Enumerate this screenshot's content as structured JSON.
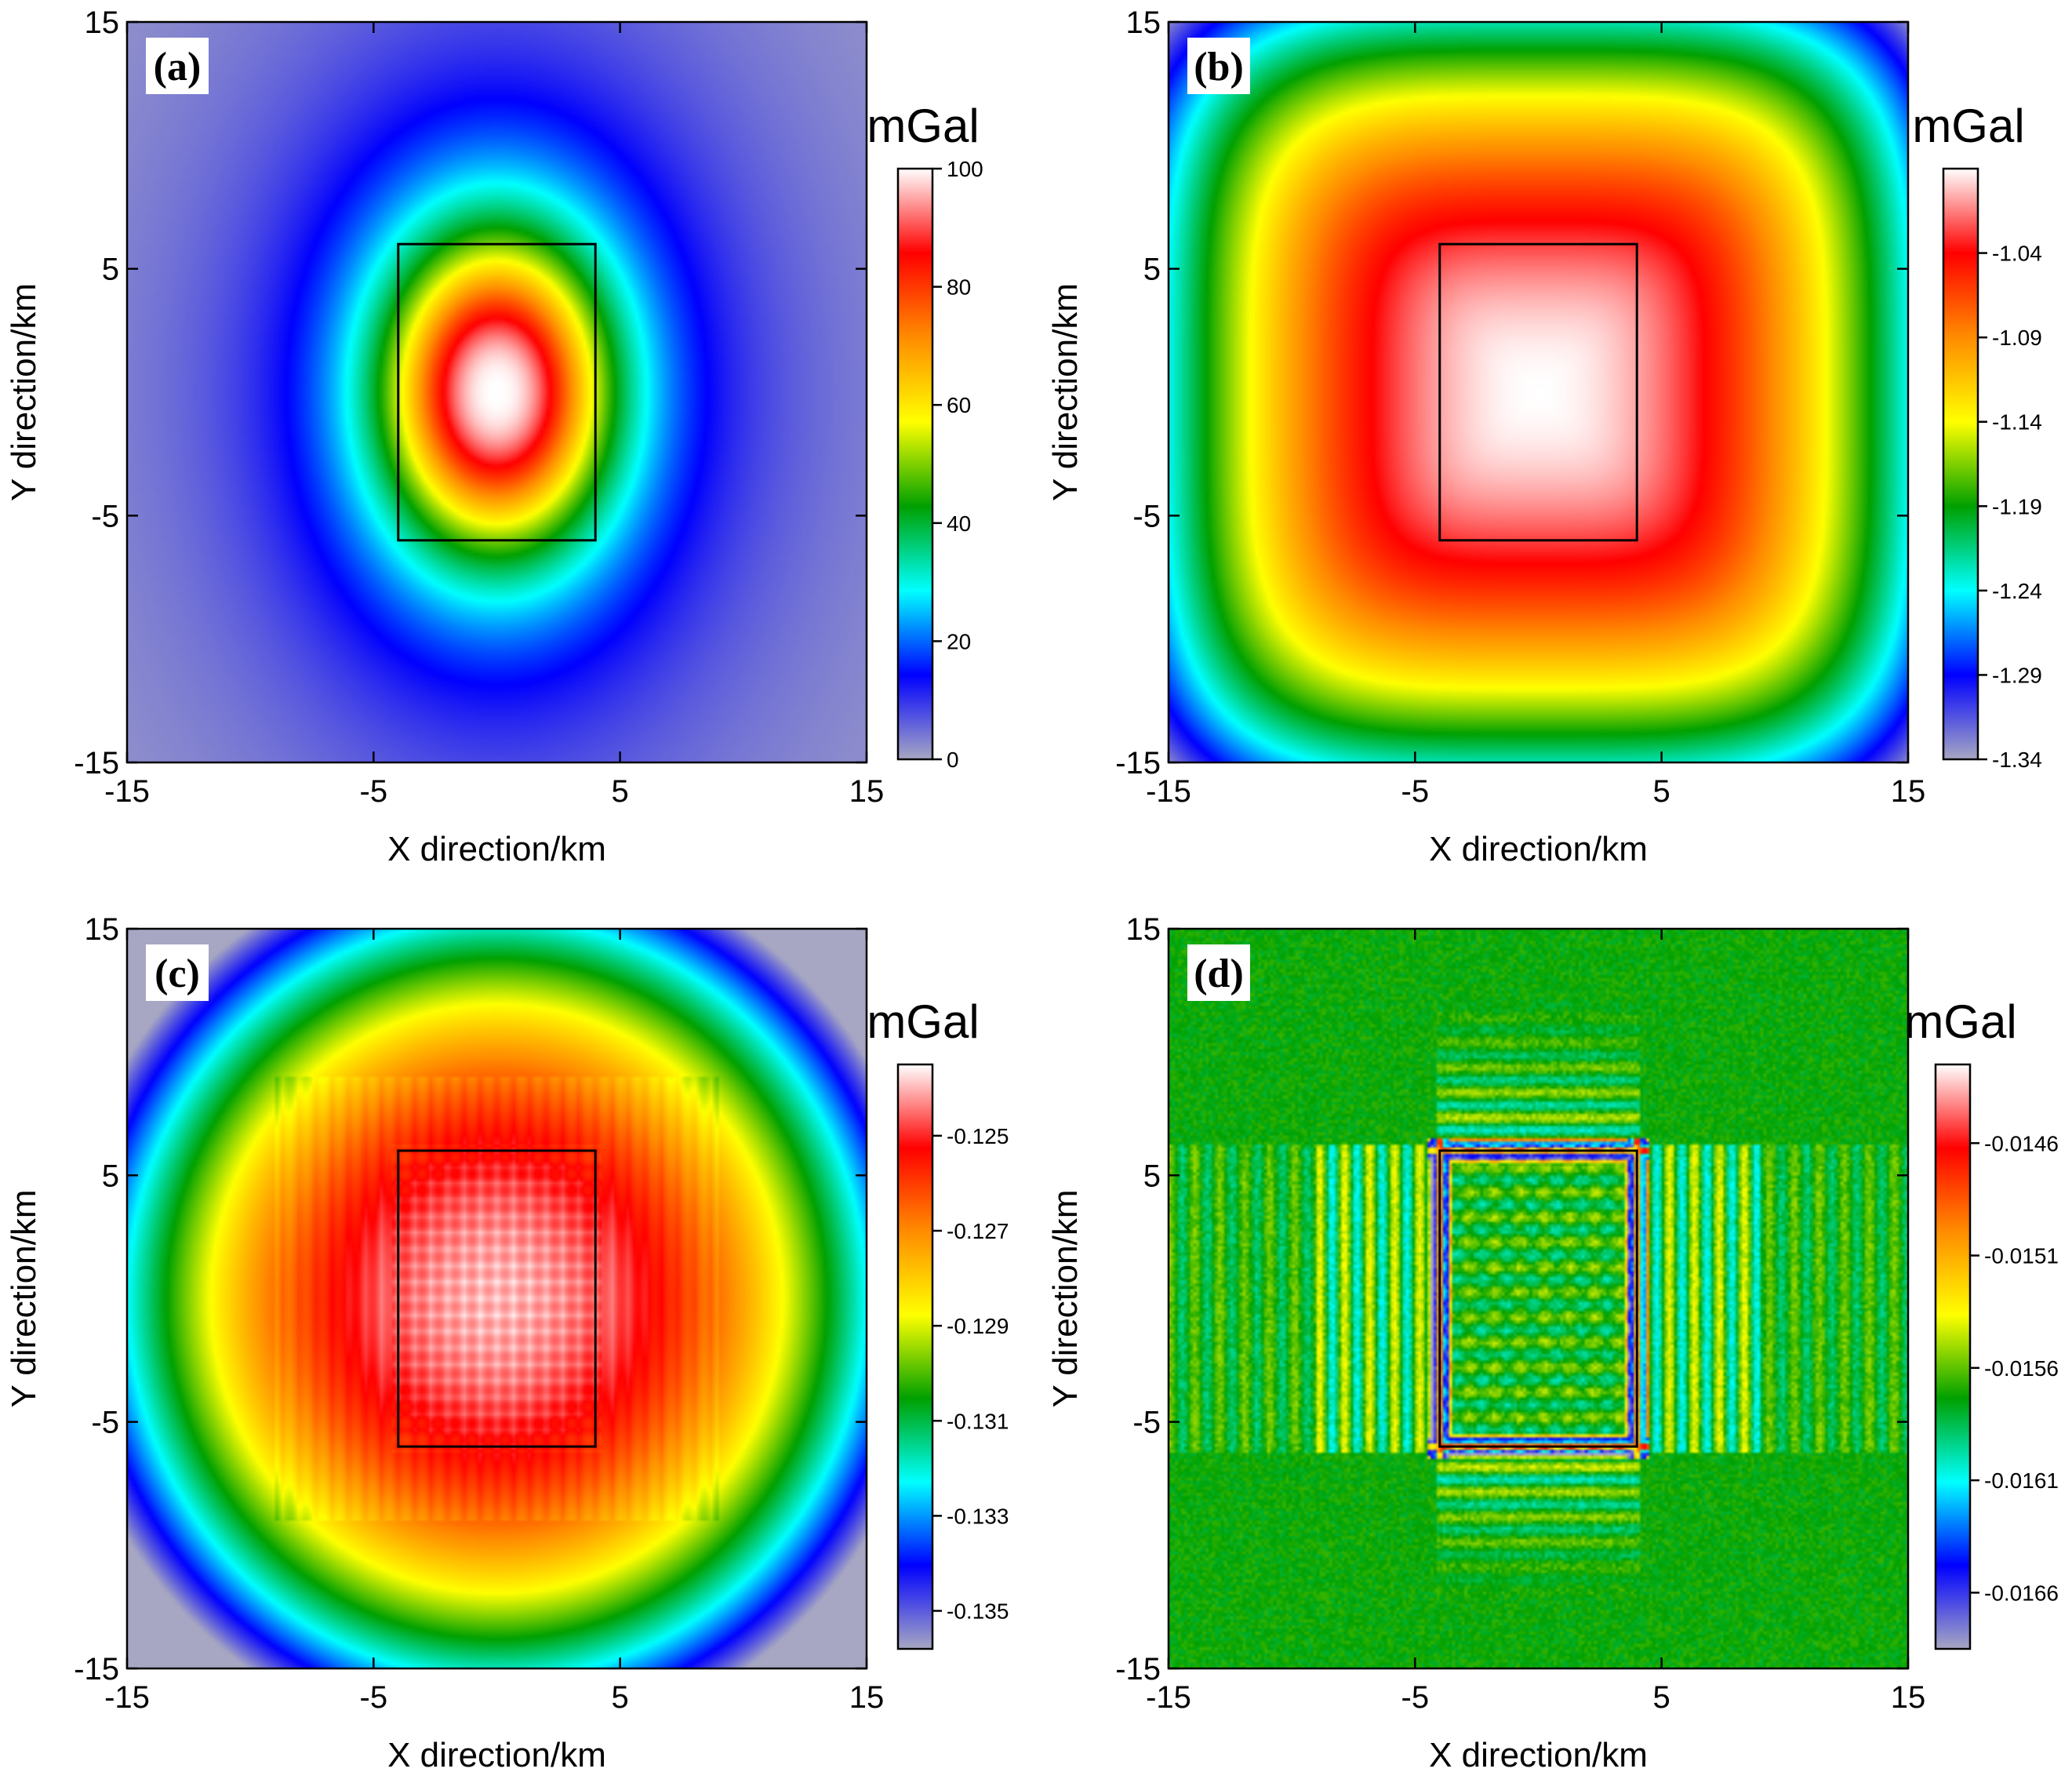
{
  "figure": {
    "axis": {
      "xlabel": "X direction/km",
      "ylabel": "Y direction/km"
    },
    "colorbar_unit": "mGal",
    "colormap": [
      "#a7a7c3",
      "#0000ff",
      "#00ffff",
      "#00a000",
      "#ffff00",
      "#ff8c00",
      "#ff0000",
      "#ffffff"
    ]
  },
  "chart_data": [
    {
      "type": "heatmap",
      "panel": "(a)",
      "xlabel": "X direction/km",
      "ylabel": "Y direction/km",
      "xlim": [
        -15,
        15
      ],
      "ylim": [
        -15,
        15
      ],
      "xticks": [
        "-15",
        "-5",
        "5",
        "15"
      ],
      "yticks": [
        "15",
        "5",
        "-5",
        "-15"
      ],
      "field": "central anomaly",
      "outline": {
        "x": [
          -4,
          4
        ],
        "y": [
          -6,
          6
        ]
      },
      "colorbar": {
        "unit": "mGal",
        "range": [
          0,
          100
        ],
        "ticks": [
          "100",
          "80",
          "60",
          "40",
          "20",
          "0"
        ]
      }
    },
    {
      "type": "heatmap",
      "panel": "(b)",
      "xlabel": "X direction/km",
      "ylabel": "Y direction/km",
      "xlim": [
        -15,
        15
      ],
      "ylim": [
        -15,
        15
      ],
      "xticks": [
        "-15",
        "-5",
        "5",
        "15"
      ],
      "yticks": [
        "15",
        "5",
        "-5",
        "-15"
      ],
      "field": "broad square",
      "outline": {
        "x": [
          -4,
          4
        ],
        "y": [
          -6,
          6
        ]
      },
      "colorbar": {
        "unit": "mGal",
        "range": [
          -1.34,
          -0.99
        ],
        "ticks": [
          "-1.04",
          "-1.09",
          "-1.14",
          "-1.19",
          "-1.24",
          "-1.29",
          "-1.34"
        ]
      }
    },
    {
      "type": "heatmap",
      "panel": "(c)",
      "xlabel": "X direction/km",
      "ylabel": "Y direction/km",
      "xlim": [
        -15,
        15
      ],
      "ylim": [
        -15,
        15
      ],
      "xticks": [
        "-15",
        "-5",
        "5",
        "15"
      ],
      "yticks": [
        "15",
        "5",
        "-5",
        "-15"
      ],
      "field": "broad round with ripples",
      "outline": {
        "x": [
          -4,
          4
        ],
        "y": [
          -6,
          6
        ]
      },
      "colorbar": {
        "unit": "mGal",
        "range": [
          -0.1358,
          -0.1235
        ],
        "ticks": [
          "-0.125",
          "-0.127",
          "-0.129",
          "-0.131",
          "-0.133",
          "-0.135"
        ]
      }
    },
    {
      "type": "heatmap",
      "panel": "(d)",
      "xlabel": "X direction/km",
      "ylabel": "Y direction/km",
      "xlim": [
        -15,
        15
      ],
      "ylim": [
        -15,
        15
      ],
      "xticks": [
        "-15",
        "-5",
        "5",
        "15"
      ],
      "yticks": [
        "15",
        "5",
        "-5",
        "-15"
      ],
      "field": "residual stripes",
      "outline": {
        "x": [
          -4,
          4
        ],
        "y": [
          -6,
          6
        ]
      },
      "colorbar": {
        "unit": "mGal",
        "range": [
          -0.01685,
          -0.01425
        ],
        "ticks": [
          "-0.0146",
          "-0.0151",
          "-0.0156",
          "-0.0161",
          "-0.0166"
        ]
      }
    }
  ]
}
